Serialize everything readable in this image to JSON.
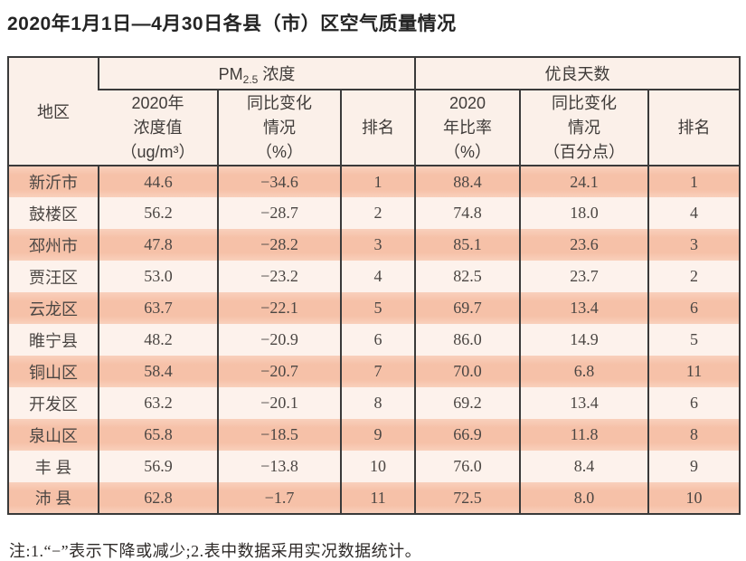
{
  "page": {
    "title": "2020年1月1日—4月30日各县（市）区空气质量情况",
    "note": "注:1.“−”表示下降或减少;2.表中数据采用实况数据统计。"
  },
  "table": {
    "header": {
      "region": "地区",
      "pm_group": {
        "prefix": "PM",
        "sub": "2.5",
        "suffix": " 浓度"
      },
      "good_group": "优良天数",
      "pm_value": "2020年\n浓度值\n（ug/m³）",
      "pm_change": "同比变化\n情况\n（%）",
      "pm_rank": "排名",
      "good_ratio": "2020\n年比率\n（%）",
      "good_change": "同比变化\n情况\n（百分点）",
      "good_rank": "排名"
    },
    "rows": [
      {
        "region": "新沂市",
        "pm_value": "44.6",
        "pm_change": "−34.6",
        "pm_rank": "1",
        "good_ratio": "88.4",
        "good_change": "24.1",
        "good_rank": "1"
      },
      {
        "region": "鼓楼区",
        "pm_value": "56.2",
        "pm_change": "−28.7",
        "pm_rank": "2",
        "good_ratio": "74.8",
        "good_change": "18.0",
        "good_rank": "4"
      },
      {
        "region": "邳州市",
        "pm_value": "47.8",
        "pm_change": "−28.2",
        "pm_rank": "3",
        "good_ratio": "85.1",
        "good_change": "23.6",
        "good_rank": "3"
      },
      {
        "region": "贾汪区",
        "pm_value": "53.0",
        "pm_change": "−23.2",
        "pm_rank": "4",
        "good_ratio": "82.5",
        "good_change": "23.7",
        "good_rank": "2"
      },
      {
        "region": "云龙区",
        "pm_value": "63.7",
        "pm_change": "−22.1",
        "pm_rank": "5",
        "good_ratio": "69.7",
        "good_change": "13.4",
        "good_rank": "6"
      },
      {
        "region": "睢宁县",
        "pm_value": "48.2",
        "pm_change": "−20.9",
        "pm_rank": "6",
        "good_ratio": "86.0",
        "good_change": "14.9",
        "good_rank": "5"
      },
      {
        "region": "铜山区",
        "pm_value": "58.4",
        "pm_change": "−20.7",
        "pm_rank": "7",
        "good_ratio": "70.0",
        "good_change": "6.8",
        "good_rank": "11"
      },
      {
        "region": "开发区",
        "pm_value": "63.2",
        "pm_change": "−20.1",
        "pm_rank": "8",
        "good_ratio": "69.2",
        "good_change": "13.4",
        "good_rank": "6"
      },
      {
        "region": "泉山区",
        "pm_value": "65.8",
        "pm_change": "−18.5",
        "pm_rank": "9",
        "good_ratio": "66.9",
        "good_change": "11.8",
        "good_rank": "8"
      },
      {
        "region": "丰 县",
        "pm_value": "56.9",
        "pm_change": "−13.8",
        "pm_rank": "10",
        "good_ratio": "76.0",
        "good_change": "8.4",
        "good_rank": "9"
      },
      {
        "region": "沛 县",
        "pm_value": "62.8",
        "pm_change": "−1.7",
        "pm_rank": "11",
        "good_ratio": "72.5",
        "good_change": "8.0",
        "good_rank": "10"
      }
    ]
  },
  "colors": {
    "row_salmon": "#f6c1a8",
    "row_light": "#fdf2ec",
    "header_bg": "#fbf0e9",
    "border": "#3a3a3a"
  }
}
